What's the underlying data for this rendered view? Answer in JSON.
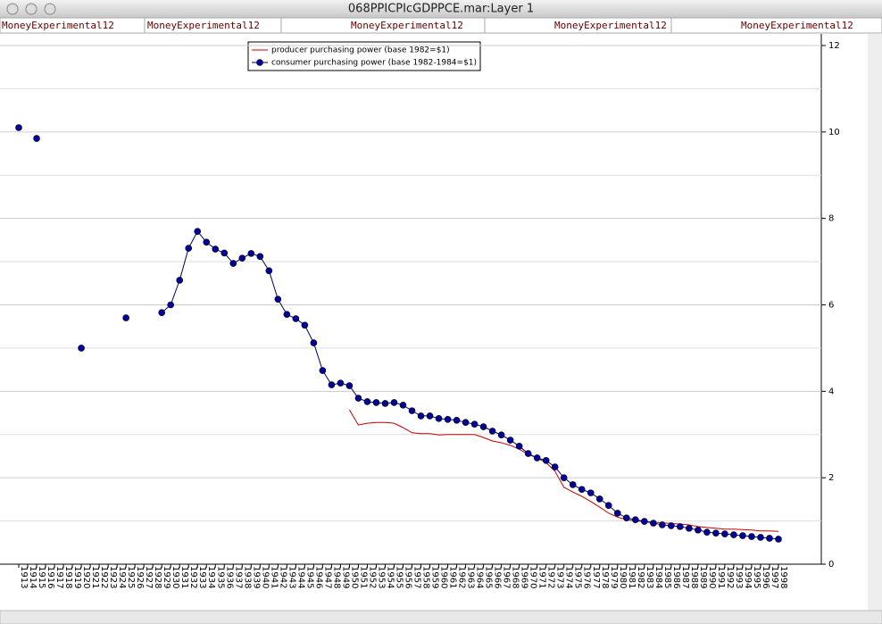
{
  "window": {
    "title": "068PPICPIcGDPPCE.mar:Layer 1",
    "tabs": [
      "MoneyExperimental12",
      "MoneyExperimental12",
      "MoneyExperimental12",
      "MoneyExperimental12",
      "MoneyExperimental12"
    ]
  },
  "chart_data": {
    "type": "line",
    "categories": [
      "1913",
      "1914",
      "1915",
      "1916",
      "1917",
      "1918",
      "1919",
      "1920",
      "1921",
      "1922",
      "1923",
      "1924",
      "1925",
      "1926",
      "1927",
      "1928",
      "1929",
      "1930",
      "1931",
      "1932",
      "1933",
      "1934",
      "1935",
      "1936",
      "1937",
      "1938",
      "1939",
      "1940",
      "1941",
      "1942",
      "1943",
      "1944",
      "1945",
      "1946",
      "1947",
      "1948",
      "1949",
      "1950",
      "1951",
      "1952",
      "1953",
      "1954",
      "1955",
      "1956",
      "1957",
      "1958",
      "1959",
      "1960",
      "1961",
      "1962",
      "1963",
      "1964",
      "1965",
      "1966",
      "1967",
      "1968",
      "1969",
      "1970",
      "1971",
      "1972",
      "1973",
      "1974",
      "1975",
      "1976",
      "1977",
      "1978",
      "1979",
      "1980",
      "1981",
      "1982",
      "1983",
      "1984",
      "1985",
      "1986",
      "1987",
      "1988",
      "1989",
      "1990",
      "1991",
      "1992",
      "1993",
      "1994",
      "1995",
      "1996",
      "1997",
      "1998"
    ],
    "series": [
      {
        "name": "producer purchasing power (base 1982=$1)",
        "color": "#c00000",
        "markers": false,
        "values": [
          null,
          null,
          null,
          null,
          null,
          null,
          null,
          null,
          null,
          null,
          null,
          null,
          null,
          null,
          null,
          null,
          null,
          null,
          null,
          null,
          null,
          null,
          null,
          null,
          null,
          null,
          null,
          null,
          null,
          null,
          null,
          null,
          null,
          null,
          null,
          null,
          null,
          3.57,
          3.22,
          3.26,
          3.28,
          3.28,
          3.26,
          3.16,
          3.04,
          3.02,
          3.02,
          2.99,
          3.0,
          3.0,
          3.0,
          3.0,
          2.93,
          2.85,
          2.81,
          2.75,
          2.66,
          2.54,
          2.46,
          2.35,
          2.15,
          1.78,
          1.67,
          1.57,
          1.45,
          1.32,
          1.18,
          1.09,
          1.03,
          1.0,
          0.99,
          0.97,
          0.96,
          0.94,
          0.93,
          0.91,
          0.87,
          0.85,
          0.83,
          0.81,
          0.81,
          0.8,
          0.79,
          0.77,
          0.77,
          0.76
        ]
      },
      {
        "name": "consumer purchasing power (base 1982-1984=$1)",
        "color": "#0000a0",
        "markers": true,
        "values": [
          10.1,
          null,
          9.85,
          null,
          null,
          null,
          null,
          5.0,
          null,
          null,
          null,
          null,
          5.7,
          null,
          null,
          null,
          5.82,
          6.0,
          6.57,
          7.31,
          7.7,
          7.45,
          7.29,
          7.2,
          6.96,
          7.08,
          7.19,
          7.12,
          6.79,
          6.13,
          5.78,
          5.68,
          5.53,
          5.12,
          4.48,
          4.15,
          4.19,
          4.13,
          3.84,
          3.76,
          3.74,
          3.72,
          3.74,
          3.68,
          3.55,
          3.43,
          3.43,
          3.37,
          3.35,
          3.33,
          3.28,
          3.24,
          3.18,
          3.08,
          2.99,
          2.87,
          2.73,
          2.56,
          2.46,
          2.4,
          2.25,
          2.0,
          1.84,
          1.73,
          1.65,
          1.51,
          1.36,
          1.18,
          1.07,
          1.03,
          0.99,
          0.95,
          0.91,
          0.89,
          0.87,
          0.83,
          0.79,
          0.74,
          0.72,
          0.7,
          0.68,
          0.66,
          0.64,
          0.62,
          0.6,
          0.58
        ]
      }
    ],
    "ylim": [
      0,
      12
    ],
    "yticks": [
      0,
      2,
      4,
      6,
      8,
      10,
      12
    ],
    "y_axis_side": "right",
    "grid": true,
    "legend": "top"
  }
}
